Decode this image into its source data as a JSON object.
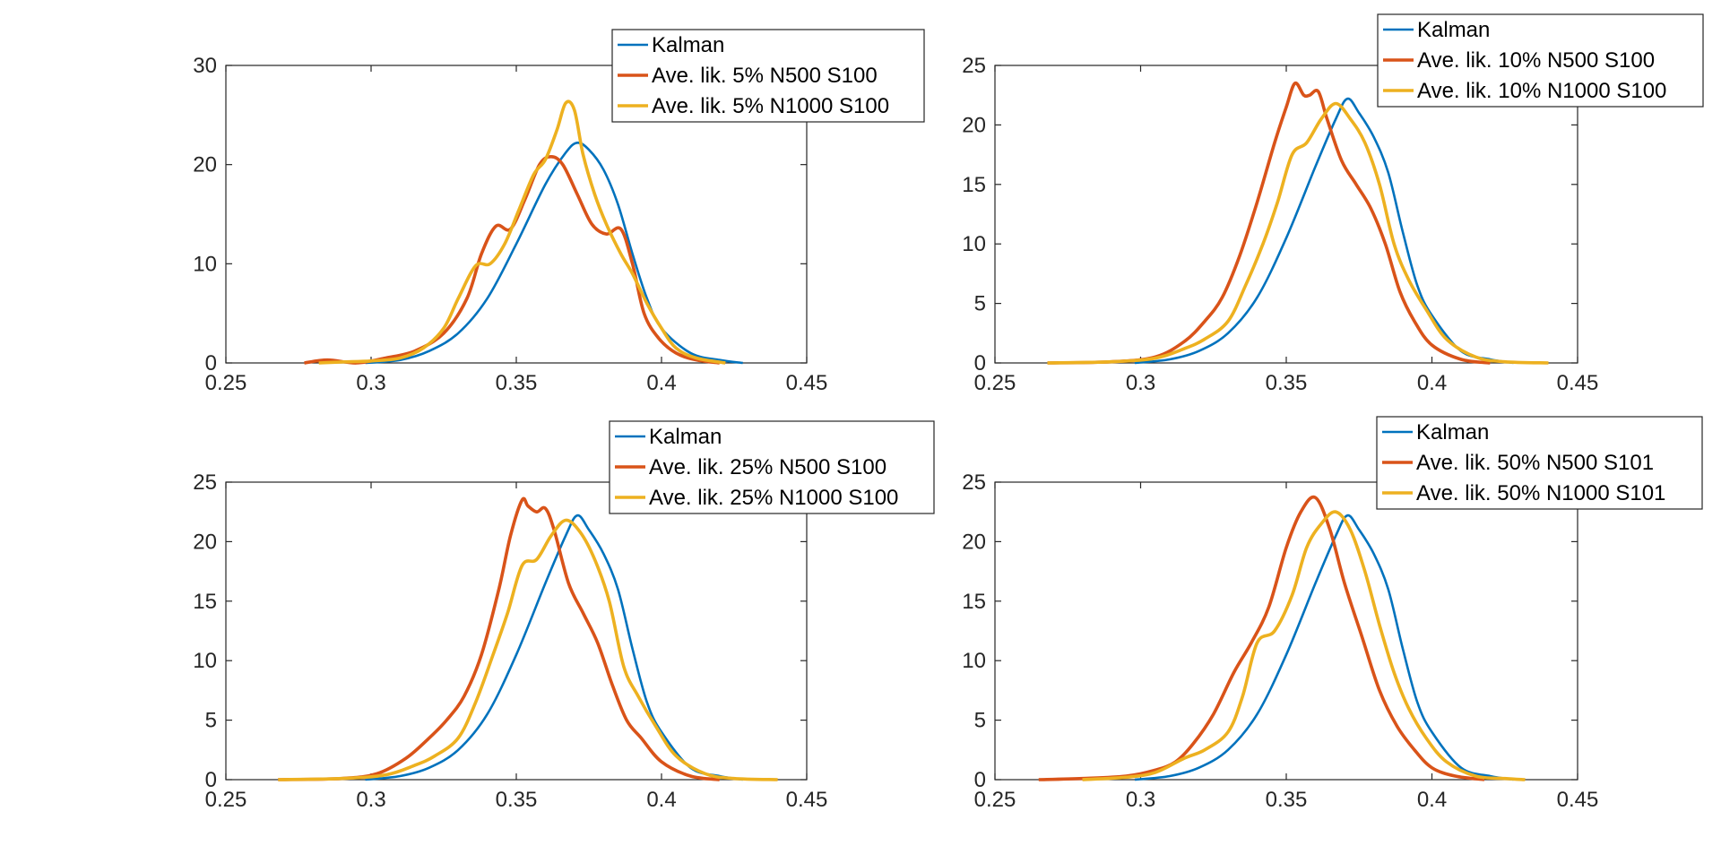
{
  "colors": {
    "kalman": "#0072BD",
    "n500": "#D95319",
    "n1000": "#EDB120",
    "axis": "#262626",
    "background": "#ffffff"
  },
  "chart_data": [
    {
      "type": "line",
      "position": "top-left",
      "xlim": [
        0.25,
        0.45
      ],
      "ylim": [
        0,
        30
      ],
      "xticks": [
        0.25,
        0.3,
        0.35,
        0.4,
        0.45
      ],
      "xtick_labels": [
        "0.25",
        "0.3",
        "0.35",
        "0.4",
        "0.45"
      ],
      "yticks": [
        0,
        10,
        20,
        30
      ],
      "ytick_labels": [
        "0",
        "10",
        "20",
        "30"
      ],
      "legend_placement": "top-right",
      "series": [
        {
          "name": "Kalman",
          "color_key": "kalman",
          "x": [
            0.298,
            0.31,
            0.32,
            0.33,
            0.34,
            0.35,
            0.36,
            0.367,
            0.371,
            0.375,
            0.38,
            0.385,
            0.39,
            0.395,
            0.4,
            0.41,
            0.42,
            0.428
          ],
          "y": [
            0,
            0.3,
            1.2,
            3.0,
            6.5,
            12.0,
            18.0,
            21.2,
            22.2,
            21.5,
            19.5,
            16.0,
            11.0,
            6.5,
            3.5,
            1.0,
            0.3,
            0
          ]
        },
        {
          "name": "Ave. lik. 5% N500 S100",
          "color_key": "n500",
          "x": [
            0.277,
            0.285,
            0.295,
            0.305,
            0.315,
            0.325,
            0.333,
            0.338,
            0.343,
            0.348,
            0.353,
            0.358,
            0.362,
            0.366,
            0.371,
            0.376,
            0.381,
            0.386,
            0.39,
            0.394,
            0.399,
            0.405,
            0.412,
            0.42
          ],
          "y": [
            0,
            0.3,
            0,
            0.5,
            1.2,
            3.0,
            6.5,
            11.0,
            13.8,
            13.5,
            16.5,
            20.0,
            20.8,
            20.0,
            17.0,
            14.0,
            13.0,
            13.5,
            10.0,
            5.0,
            2.5,
            1.0,
            0.3,
            0
          ]
        },
        {
          "name": "Ave. lik. 5% N1000 S100",
          "color_key": "n1000",
          "x": [
            0.282,
            0.29,
            0.3,
            0.31,
            0.318,
            0.325,
            0.33,
            0.336,
            0.341,
            0.346,
            0.351,
            0.356,
            0.36,
            0.364,
            0.367,
            0.37,
            0.373,
            0.377,
            0.381,
            0.386,
            0.39,
            0.395,
            0.4,
            0.405,
            0.412,
            0.422
          ],
          "y": [
            0,
            0.1,
            0.2,
            0.5,
            1.5,
            3.5,
            6.5,
            9.8,
            10.0,
            12.0,
            15.5,
            19.0,
            20.5,
            23.5,
            26.2,
            25.5,
            21.0,
            17.0,
            14.0,
            11.0,
            9.0,
            6.0,
            3.5,
            1.5,
            0.5,
            0
          ]
        }
      ],
      "legend": [
        "Kalman",
        "Ave. lik. 5% N500 S100",
        "Ave. lik. 5% N1000 S100"
      ]
    },
    {
      "type": "line",
      "position": "top-right",
      "xlim": [
        0.25,
        0.45
      ],
      "ylim": [
        0,
        25
      ],
      "xticks": [
        0.25,
        0.3,
        0.35,
        0.4,
        0.45
      ],
      "xtick_labels": [
        "0.25",
        "0.3",
        "0.35",
        "0.4",
        "0.45"
      ],
      "yticks": [
        0,
        5,
        10,
        15,
        20,
        25
      ],
      "ytick_labels": [
        "0",
        "5",
        "10",
        "15",
        "20",
        "25"
      ],
      "legend_placement": "top-right",
      "series": [
        {
          "name": "Kalman",
          "color_key": "kalman",
          "x": [
            0.298,
            0.31,
            0.32,
            0.33,
            0.34,
            0.35,
            0.36,
            0.367,
            0.371,
            0.375,
            0.38,
            0.385,
            0.39,
            0.395,
            0.4,
            0.41,
            0.42,
            0.428
          ],
          "y": [
            0,
            0.3,
            1.0,
            2.5,
            5.5,
            10.5,
            16.5,
            20.5,
            22.2,
            21.0,
            19.0,
            16.0,
            11.0,
            6.5,
            4.0,
            1.0,
            0.3,
            0
          ]
        },
        {
          "name": "Ave. lik. 10% N500 S100",
          "color_key": "n500",
          "x": [
            0.268,
            0.29,
            0.305,
            0.315,
            0.322,
            0.328,
            0.334,
            0.34,
            0.346,
            0.35,
            0.353,
            0.356,
            0.358,
            0.361,
            0.364,
            0.369,
            0.374,
            0.379,
            0.384,
            0.389,
            0.394,
            0.4,
            0.41,
            0.42
          ],
          "y": [
            0,
            0.1,
            0.5,
            1.8,
            3.5,
            5.5,
            9.0,
            13.5,
            18.5,
            21.5,
            23.5,
            22.5,
            22.5,
            22.8,
            20.5,
            17.0,
            15.0,
            13.0,
            10.0,
            6.0,
            3.5,
            1.5,
            0.3,
            0
          ]
        },
        {
          "name": "Ave. lik. 10% N1000 S100",
          "color_key": "n1000",
          "x": [
            0.268,
            0.29,
            0.305,
            0.315,
            0.322,
            0.33,
            0.336,
            0.342,
            0.347,
            0.352,
            0.357,
            0.362,
            0.367,
            0.372,
            0.377,
            0.382,
            0.387,
            0.392,
            0.398,
            0.405,
            0.415,
            0.425,
            0.44
          ],
          "y": [
            0,
            0.1,
            0.4,
            1.2,
            2.0,
            3.5,
            6.5,
            10.0,
            13.5,
            17.5,
            18.5,
            20.5,
            21.8,
            20.5,
            18.5,
            15.0,
            10.0,
            7.0,
            4.5,
            2.0,
            0.5,
            0.1,
            0
          ]
        }
      ],
      "legend": [
        "Kalman",
        "Ave. lik. 10% N500 S100",
        "Ave. lik. 10% N1000 S100"
      ]
    },
    {
      "type": "line",
      "position": "bottom-left",
      "xlim": [
        0.25,
        0.45
      ],
      "ylim": [
        0,
        25
      ],
      "xticks": [
        0.25,
        0.3,
        0.35,
        0.4,
        0.45
      ],
      "xtick_labels": [
        "0.25",
        "0.3",
        "0.35",
        "0.4",
        "0.45"
      ],
      "yticks": [
        0,
        5,
        10,
        15,
        20,
        25
      ],
      "ytick_labels": [
        "0",
        "5",
        "10",
        "15",
        "20",
        "25"
      ],
      "legend_placement": "top-right",
      "series": [
        {
          "name": "Kalman",
          "color_key": "kalman",
          "x": [
            0.298,
            0.31,
            0.32,
            0.33,
            0.34,
            0.35,
            0.36,
            0.367,
            0.371,
            0.375,
            0.38,
            0.385,
            0.39,
            0.395,
            0.4,
            0.41,
            0.42,
            0.428
          ],
          "y": [
            0,
            0.3,
            1.0,
            2.5,
            5.5,
            10.5,
            16.5,
            20.5,
            22.2,
            21.0,
            19.0,
            16.0,
            11.0,
            6.5,
            4.0,
            1.0,
            0.3,
            0
          ]
        },
        {
          "name": "Ave. lik. 25% N500 S100",
          "color_key": "n500",
          "x": [
            0.268,
            0.29,
            0.302,
            0.312,
            0.32,
            0.326,
            0.332,
            0.338,
            0.344,
            0.348,
            0.352,
            0.354,
            0.357,
            0.36,
            0.363,
            0.368,
            0.373,
            0.378,
            0.383,
            0.388,
            0.393,
            0.4,
            0.41,
            0.42
          ],
          "y": [
            0,
            0.1,
            0.5,
            1.8,
            3.5,
            5.0,
            7.0,
            10.5,
            16.0,
            20.5,
            23.5,
            23.0,
            22.5,
            22.8,
            21.0,
            16.5,
            14.0,
            11.5,
            8.0,
            5.0,
            3.5,
            1.5,
            0.3,
            0
          ]
        },
        {
          "name": "Ave. lik. 25% N1000 S100",
          "color_key": "n1000",
          "x": [
            0.268,
            0.29,
            0.305,
            0.315,
            0.322,
            0.33,
            0.336,
            0.342,
            0.347,
            0.352,
            0.357,
            0.362,
            0.367,
            0.372,
            0.377,
            0.382,
            0.387,
            0.392,
            0.398,
            0.405,
            0.415,
            0.425,
            0.44
          ],
          "y": [
            0,
            0.1,
            0.4,
            1.2,
            2.0,
            3.5,
            6.5,
            10.5,
            14.0,
            18.0,
            18.5,
            20.5,
            21.8,
            20.8,
            18.5,
            15.0,
            9.5,
            7.0,
            4.5,
            2.0,
            0.5,
            0.1,
            0
          ]
        }
      ],
      "legend": [
        "Kalman",
        "Ave. lik. 25% N500 S100",
        "Ave. lik. 25% N1000 S100"
      ]
    },
    {
      "type": "line",
      "position": "bottom-right",
      "xlim": [
        0.25,
        0.45
      ],
      "ylim": [
        0,
        25
      ],
      "xticks": [
        0.25,
        0.3,
        0.35,
        0.4,
        0.45
      ],
      "xtick_labels": [
        "0.25",
        "0.3",
        "0.35",
        "0.4",
        "0.45"
      ],
      "yticks": [
        0,
        5,
        10,
        15,
        20,
        25
      ],
      "ytick_labels": [
        "0",
        "5",
        "10",
        "15",
        "20",
        "25"
      ],
      "legend_placement": "top-right",
      "series": [
        {
          "name": "Kalman",
          "color_key": "kalman",
          "x": [
            0.298,
            0.31,
            0.32,
            0.33,
            0.34,
            0.35,
            0.36,
            0.367,
            0.371,
            0.375,
            0.38,
            0.385,
            0.39,
            0.395,
            0.4,
            0.41,
            0.42,
            0.428
          ],
          "y": [
            0,
            0.3,
            1.0,
            2.5,
            5.5,
            10.5,
            16.5,
            20.5,
            22.2,
            21.0,
            19.0,
            16.0,
            11.0,
            6.5,
            4.0,
            1.0,
            0.3,
            0
          ]
        },
        {
          "name": "Ave. lik. 50% N500 S101",
          "color_key": "n500",
          "x": [
            0.265,
            0.28,
            0.295,
            0.305,
            0.312,
            0.318,
            0.325,
            0.332,
            0.338,
            0.344,
            0.35,
            0.355,
            0.36,
            0.365,
            0.37,
            0.376,
            0.382,
            0.388,
            0.394,
            0.4,
            0.408,
            0.418
          ],
          "y": [
            0,
            0.1,
            0.3,
            0.8,
            1.5,
            3.0,
            5.5,
            9.0,
            11.5,
            14.5,
            19.5,
            22.5,
            23.7,
            21.0,
            16.5,
            12.0,
            7.5,
            4.5,
            2.5,
            1.0,
            0.3,
            0
          ]
        },
        {
          "name": "Ave. lik. 50% N1000 S101",
          "color_key": "n1000",
          "x": [
            0.28,
            0.295,
            0.305,
            0.315,
            0.322,
            0.33,
            0.335,
            0.34,
            0.346,
            0.352,
            0.357,
            0.362,
            0.367,
            0.372,
            0.377,
            0.382,
            0.387,
            0.392,
            0.398,
            0.405,
            0.415,
            0.425,
            0.432
          ],
          "y": [
            0,
            0.2,
            0.6,
            1.8,
            2.5,
            4.0,
            7.0,
            11.5,
            12.5,
            15.5,
            19.5,
            21.5,
            22.5,
            21.0,
            17.5,
            13.0,
            9.0,
            6.0,
            3.5,
            1.5,
            0.3,
            0.1,
            0
          ]
        }
      ],
      "legend": [
        "Kalman",
        "Ave. lik. 50% N500 S101",
        "Ave. lik. 50% N1000 S101"
      ]
    }
  ]
}
